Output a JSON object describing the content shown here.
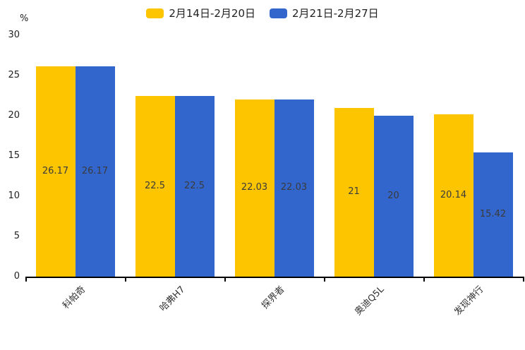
{
  "chart_data": {
    "type": "bar",
    "title": "",
    "categories": [
      "科帕奇",
      "哈弗H7",
      "探界者",
      "奥迪Q5L",
      "发现神行"
    ],
    "series": [
      {
        "name": "2月14日-2月20日",
        "color": "#FDC400",
        "values": [
          26.17,
          22.5,
          22.03,
          21,
          20.14
        ]
      },
      {
        "name": "2月21日-2月27日",
        "color": "#3366CC",
        "values": [
          26.17,
          22.5,
          22.03,
          20,
          15.42
        ]
      }
    ],
    "xlabel": "",
    "ylabel": "%",
    "ylim": [
      0,
      30
    ],
    "yticks": [
      0,
      5,
      10,
      15,
      20,
      25,
      30
    ],
    "grid": false,
    "legend_position": "top",
    "value_labels": "inside-center",
    "x_label_rotation": -45
  },
  "colors": {
    "axis": "#000000",
    "tick_text": "#222222",
    "bar_value_text": "#3b3b3b",
    "background": "#ffffff"
  }
}
